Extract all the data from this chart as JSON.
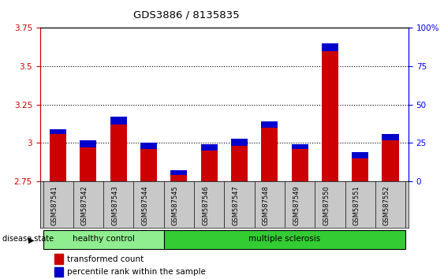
{
  "title": "GDS3886 / 8135835",
  "samples": [
    "GSM587541",
    "GSM587542",
    "GSM587543",
    "GSM587544",
    "GSM587545",
    "GSM587546",
    "GSM587547",
    "GSM587548",
    "GSM587549",
    "GSM587550",
    "GSM587551",
    "GSM587552"
  ],
  "transformed_count": [
    3.09,
    3.02,
    3.17,
    3.0,
    2.82,
    2.99,
    3.03,
    3.14,
    2.99,
    3.65,
    2.94,
    3.06
  ],
  "percentile_rank": [
    3,
    5,
    5,
    4,
    3,
    4,
    5,
    4,
    3,
    5,
    4,
    4
  ],
  "ymin": 2.75,
  "ymax": 3.75,
  "yticks": [
    2.75,
    3.0,
    3.25,
    3.5,
    3.75
  ],
  "ytick_labels": [
    "2.75",
    "3",
    "3.25",
    "3.5",
    "3.75"
  ],
  "right_yticks": [
    0,
    25,
    50,
    75,
    100
  ],
  "right_ytick_labels": [
    "0",
    "25",
    "50",
    "75",
    "100%"
  ],
  "bar_color_red": "#cc0000",
  "bar_color_blue": "#0000cc",
  "healthy_color": "#90ee90",
  "ms_color": "#33cc33",
  "bg_color": "#c8c8c8",
  "bar_width": 0.55
}
